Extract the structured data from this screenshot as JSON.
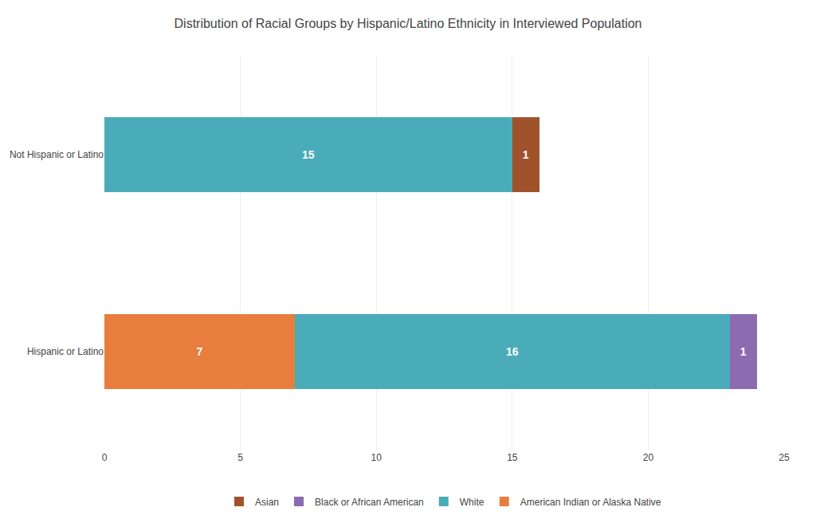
{
  "chart_data": {
    "type": "bar",
    "orientation": "horizontal",
    "stacked": true,
    "title": "Distribution of Racial Groups by Hispanic/Latino Ethnicity in Interviewed Population",
    "categories": [
      "Hispanic or Latino",
      "Not Hispanic or Latino"
    ],
    "series": [
      {
        "name": "American Indian or Alaska Native",
        "color": "#E87E3E",
        "values": [
          7,
          0
        ]
      },
      {
        "name": "White",
        "color": "#4AACB8",
        "values": [
          16,
          15
        ]
      },
      {
        "name": "Black or African American",
        "color": "#8C6BB1",
        "values": [
          1,
          0
        ]
      },
      {
        "name": "Asian",
        "color": "#A0522D",
        "values": [
          0,
          1
        ]
      }
    ],
    "xlim": [
      0,
      25
    ],
    "xticks": [
      0,
      5,
      10,
      15,
      20,
      25
    ],
    "grid": true,
    "legend": "bottom",
    "data_labels": true
  }
}
